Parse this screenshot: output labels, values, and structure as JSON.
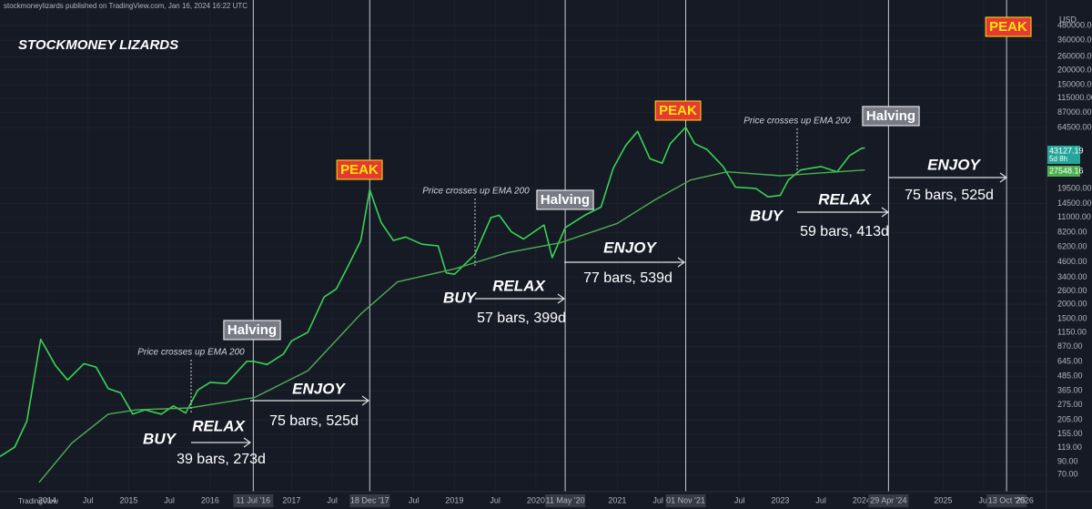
{
  "header": "stockmoneylizards published on TradingView.com, Jan 16, 2024 16:22 UTC",
  "footer": "TradingView",
  "chart_data": {
    "type": "line",
    "title": "STOCKMONEY LIZARDS",
    "currency": "USD",
    "log_scale": true,
    "grid": true,
    "xlim": [
      2013.42,
      2026.27
    ],
    "ylim": [
      50,
      640000
    ],
    "series": [
      {
        "color": "#39d353",
        "x": [
          2013.42,
          2013.6,
          2013.75,
          2013.92,
          2014.0,
          2014.1,
          2014.25,
          2014.45,
          2014.6,
          2014.75,
          2014.9,
          2015.05,
          2015.2,
          2015.4,
          2015.55,
          2015.7,
          2015.85,
          2016.0,
          2016.2,
          2016.45,
          2016.53,
          2016.7,
          2016.9,
          2017.0,
          2017.2,
          2017.4,
          2017.55,
          2017.7,
          2017.85,
          2017.96,
          2018.1,
          2018.25,
          2018.4,
          2018.6,
          2018.8,
          2018.9,
          2019.0,
          2019.25,
          2019.45,
          2019.55,
          2019.7,
          2019.85,
          2020.1,
          2020.2,
          2020.36,
          2020.6,
          2020.8,
          2020.95,
          2021.1,
          2021.25,
          2021.4,
          2021.55,
          2021.65,
          2021.84,
          2021.95,
          2022.1,
          2022.3,
          2022.45,
          2022.7,
          2022.85,
          2023.0,
          2023.1,
          2023.25,
          2023.5,
          2023.7,
          2023.85,
          2024.0,
          2024.04
        ],
        "values": [
          100,
          120,
          200,
          1000,
          800,
          600,
          450,
          620,
          580,
          380,
          350,
          230,
          250,
          230,
          270,
          235,
          370,
          430,
          420,
          650,
          650,
          610,
          750,
          970,
          1150,
          2300,
          2700,
          4300,
          7000,
          19000,
          10000,
          7000,
          7500,
          6500,
          6300,
          3700,
          3600,
          5300,
          11000,
          11500,
          8300,
          7200,
          9500,
          5000,
          9000,
          11500,
          13500,
          29000,
          45000,
          60000,
          35000,
          32000,
          47000,
          65000,
          47000,
          42000,
          30000,
          20000,
          19500,
          16500,
          17000,
          23000,
          28000,
          30000,
          27000,
          37000,
          43000,
          43100
        ]
      },
      {
        "color": "#4caf50",
        "x": [
          2013.9,
          2014.3,
          2014.75,
          2015.1,
          2015.75,
          2016.55,
          2017.2,
          2017.85,
          2018.3,
          2019.0,
          2019.65,
          2020.3,
          2021.0,
          2021.45,
          2021.9,
          2022.35,
          2023.0,
          2024.04
        ],
        "values": [
          60,
          130,
          230,
          250,
          260,
          320,
          540,
          1650,
          3100,
          4000,
          5500,
          6700,
          9800,
          15400,
          23000,
          27000,
          25000,
          28000
        ]
      }
    ],
    "yticks": [
      {
        "value": 70,
        "label": "70.00"
      },
      {
        "value": 90,
        "label": "90.00"
      },
      {
        "value": 119,
        "label": "119.00"
      },
      {
        "value": 155,
        "label": "155.00"
      },
      {
        "value": 205,
        "label": "205.00"
      },
      {
        "value": 275,
        "label": "275.00"
      },
      {
        "value": 365,
        "label": "365.00"
      },
      {
        "value": 485,
        "label": "485.00"
      },
      {
        "value": 645,
        "label": "645.00"
      },
      {
        "value": 870,
        "label": "870.00"
      },
      {
        "value": 1150,
        "label": "1150.00"
      },
      {
        "value": 1500,
        "label": "1500.00"
      },
      {
        "value": 2000,
        "label": "2000.00"
      },
      {
        "value": 2600,
        "label": "2600.00"
      },
      {
        "value": 3400,
        "label": "3400.00"
      },
      {
        "value": 4600,
        "label": "4600.00"
      },
      {
        "value": 6200,
        "label": "6200.00"
      },
      {
        "value": 8200,
        "label": "8200.00"
      },
      {
        "value": 11000,
        "label": "11000.00"
      },
      {
        "value": 14500,
        "label": "14500.00"
      },
      {
        "value": 19500,
        "label": "19500.00"
      },
      {
        "value": 64500,
        "label": "64500.00"
      },
      {
        "value": 87000,
        "label": "87000.00"
      },
      {
        "value": 115000,
        "label": "115000.00"
      },
      {
        "value": 150000,
        "label": "150000.00"
      },
      {
        "value": 200000,
        "label": "200000.00"
      },
      {
        "value": 260000,
        "label": "260000.00"
      },
      {
        "value": 360000,
        "label": "360000.00"
      },
      {
        "value": 480000,
        "label": "480000.00"
      }
    ],
    "xticks": [
      2014,
      {
        "value": 2014.5,
        "label": "Jul"
      },
      2015,
      {
        "value": 2015.5,
        "label": "Jul"
      },
      2016,
      {
        "value": 2016.53,
        "label": "11 Jul '16",
        "highlight": true
      },
      2017,
      {
        "value": 2017.5,
        "label": "Jul"
      },
      {
        "value": 2017.96,
        "label": "18 Dec '17",
        "highlight": true
      },
      {
        "value": 2018.5,
        "label": "Jul"
      },
      2019,
      {
        "value": 2019.5,
        "label": "Jul"
      },
      2020,
      {
        "value": 2020.36,
        "label": "11 May '20",
        "highlight": true
      },
      2021,
      {
        "value": 2021.5,
        "label": "Jul"
      },
      {
        "value": 2021.84,
        "label": "01 Nov '21",
        "highlight": true
      },
      {
        "value": 2022.5,
        "label": "Jul"
      },
      2023,
      {
        "value": 2023.5,
        "label": "Jul"
      },
      2024,
      {
        "value": 2024.33,
        "label": "29 Apr '24",
        "highlight": true
      },
      2025,
      {
        "value": 2025.5,
        "label": "Jul"
      },
      {
        "value": 2025.78,
        "label": "13 Oct '25",
        "highlight": true
      },
      2026
    ],
    "price_labels": [
      "43127.19",
      "5d 8h",
      "27548.16"
    ],
    "peaks": [
      "PEAK",
      "PEAK",
      "PEAK"
    ],
    "halvings": [
      "Halving",
      "Halving",
      "Halving"
    ],
    "notes": [
      "Price crosses up EMA 200",
      "Price crosses up EMA 200",
      "Price crosses up EMA 200"
    ],
    "phases": [
      "BUY",
      "RELAX",
      "ENJOY",
      "BUY",
      "RELAX",
      "ENJOY",
      "BUY",
      "RELAX",
      "ENJOY"
    ],
    "durations": [
      "39 bars, 273d",
      "75 bars, 525d",
      "57 bars, 399d",
      "77 bars, 539d",
      "59 bars, 413d",
      "75 bars, 525d"
    ]
  }
}
